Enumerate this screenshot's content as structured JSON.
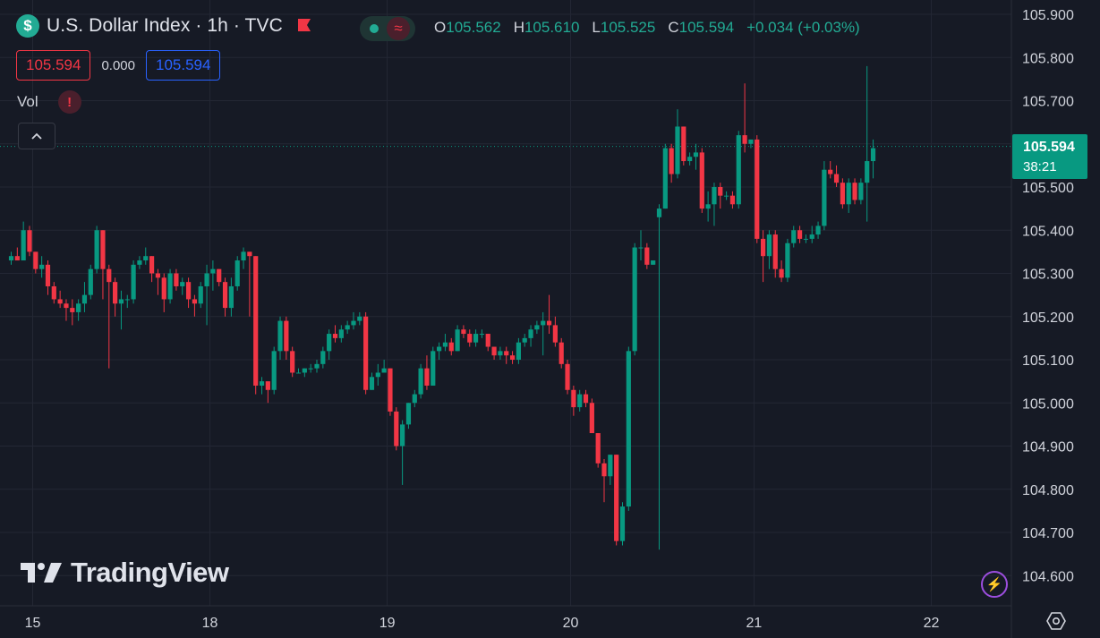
{
  "header": {
    "logo_symbol": "$",
    "title": "U.S. Dollar Index · 1h · TVC",
    "flag_icon": "flag-icon",
    "toggle_icon": "≈",
    "ohlc": [
      {
        "k": "O",
        "v": "105.562"
      },
      {
        "k": "H",
        "v": "105.610"
      },
      {
        "k": "L",
        "v": "105.525"
      },
      {
        "k": "C",
        "v": "105.594"
      }
    ],
    "change": "+0.034 (+0.03%)"
  },
  "trade": {
    "sell": "105.594",
    "spread": "0.000",
    "buy": "105.594"
  },
  "vol": {
    "label": "Vol",
    "warning": "!"
  },
  "collapse_icon": "chevron-up-icon",
  "current_price": {
    "price": "105.594",
    "countdown": "38:21"
  },
  "watermark": {
    "text": "TradingView"
  },
  "colors": {
    "up": "#089981",
    "down": "#f23645",
    "bg": "#161a25",
    "grid": "#232734",
    "accent": "#2962ff"
  },
  "chart_data": {
    "type": "candlestick",
    "title": "U.S. Dollar Index · 1h · TVC",
    "ylim": [
      104.58,
      105.93
    ],
    "y_ticks": [
      "105.900",
      "105.800",
      "105.700",
      "105.600",
      "105.500",
      "105.400",
      "105.300",
      "105.200",
      "105.100",
      "105.000",
      "104.900",
      "104.800",
      "104.700",
      "104.600"
    ],
    "x_ticks": [
      {
        "label": "15",
        "bar": 0
      },
      {
        "label": "18",
        "bar": 29
      },
      {
        "label": "19",
        "bar": 58
      },
      {
        "label": "20",
        "bar": 88
      },
      {
        "label": "21",
        "bar": 118
      },
      {
        "label": "22",
        "bar": 147
      }
    ],
    "last_price": 105.594,
    "candles": [
      [
        105.33,
        105.35,
        105.32,
        105.34
      ],
      [
        105.34,
        105.36,
        105.33,
        105.33
      ],
      [
        105.33,
        105.42,
        105.33,
        105.4
      ],
      [
        105.4,
        105.41,
        105.34,
        105.35
      ],
      [
        105.35,
        105.35,
        105.3,
        105.31
      ],
      [
        105.31,
        105.34,
        105.29,
        105.32
      ],
      [
        105.32,
        105.33,
        105.25,
        105.27
      ],
      [
        105.27,
        105.28,
        105.23,
        105.24
      ],
      [
        105.24,
        105.26,
        105.22,
        105.23
      ],
      [
        105.23,
        105.24,
        105.19,
        105.22
      ],
      [
        105.22,
        105.24,
        105.18,
        105.21
      ],
      [
        105.21,
        105.24,
        105.19,
        105.23
      ],
      [
        105.23,
        105.28,
        105.21,
        105.25
      ],
      [
        105.25,
        105.32,
        105.24,
        105.31
      ],
      [
        105.31,
        105.41,
        105.3,
        105.4
      ],
      [
        105.4,
        105.4,
        105.24,
        105.31
      ],
      [
        105.31,
        105.32,
        105.08,
        105.28
      ],
      [
        105.28,
        105.29,
        105.2,
        105.23
      ],
      [
        105.23,
        105.26,
        105.17,
        105.24
      ],
      [
        105.24,
        105.25,
        105.22,
        105.24
      ],
      [
        105.24,
        105.33,
        105.23,
        105.32
      ],
      [
        105.32,
        105.34,
        105.31,
        105.33
      ],
      [
        105.33,
        105.36,
        105.32,
        105.34
      ],
      [
        105.34,
        105.34,
        105.28,
        105.3
      ],
      [
        105.3,
        105.31,
        105.25,
        105.29
      ],
      [
        105.29,
        105.3,
        105.21,
        105.24
      ],
      [
        105.24,
        105.31,
        105.23,
        105.3
      ],
      [
        105.3,
        105.31,
        105.26,
        105.27
      ],
      [
        105.27,
        105.29,
        105.25,
        105.28
      ],
      [
        105.28,
        105.29,
        105.22,
        105.24
      ],
      [
        105.24,
        105.25,
        105.2,
        105.23
      ],
      [
        105.23,
        105.28,
        105.22,
        105.27
      ],
      [
        105.27,
        105.32,
        105.18,
        105.3
      ],
      [
        105.3,
        105.33,
        105.26,
        105.31
      ],
      [
        105.31,
        105.31,
        105.27,
        105.28
      ],
      [
        105.28,
        105.29,
        105.2,
        105.22
      ],
      [
        105.22,
        105.29,
        105.2,
        105.27
      ],
      [
        105.27,
        105.34,
        105.26,
        105.33
      ],
      [
        105.33,
        105.36,
        105.31,
        105.35
      ],
      [
        105.35,
        105.35,
        105.2,
        105.34
      ],
      [
        105.34,
        105.34,
        105.02,
        105.04
      ],
      [
        105.04,
        105.06,
        105.02,
        105.05
      ],
      [
        105.05,
        105.05,
        105.0,
        105.03
      ],
      [
        105.03,
        105.13,
        105.02,
        105.12
      ],
      [
        105.12,
        105.2,
        105.1,
        105.19
      ],
      [
        105.19,
        105.2,
        105.1,
        105.12
      ],
      [
        105.12,
        105.13,
        105.06,
        105.07
      ],
      [
        105.07,
        105.08,
        105.07,
        105.07
      ],
      [
        105.07,
        105.08,
        105.06,
        105.08
      ],
      [
        105.08,
        105.09,
        105.07,
        105.08
      ],
      [
        105.08,
        105.1,
        105.07,
        105.09
      ],
      [
        105.09,
        105.13,
        105.08,
        105.12
      ],
      [
        105.12,
        105.17,
        105.1,
        105.16
      ],
      [
        105.16,
        105.18,
        105.14,
        105.15
      ],
      [
        105.15,
        105.18,
        105.14,
        105.17
      ],
      [
        105.17,
        105.19,
        105.16,
        105.18
      ],
      [
        105.18,
        105.21,
        105.17,
        105.19
      ],
      [
        105.19,
        105.21,
        105.18,
        105.2
      ],
      [
        105.2,
        105.21,
        105.02,
        105.03
      ],
      [
        105.03,
        105.07,
        105.03,
        105.06
      ],
      [
        105.06,
        105.09,
        105.04,
        105.07
      ],
      [
        105.07,
        105.1,
        105.07,
        105.08
      ],
      [
        105.08,
        105.08,
        104.97,
        104.98
      ],
      [
        104.98,
        104.99,
        104.89,
        104.9
      ],
      [
        104.9,
        104.96,
        104.81,
        104.95
      ],
      [
        104.95,
        105.0,
        104.94,
        105.0
      ],
      [
        105.0,
        105.03,
        104.99,
        105.02
      ],
      [
        105.02,
        105.09,
        105.01,
        105.08
      ],
      [
        105.08,
        105.11,
        105.03,
        105.04
      ],
      [
        105.04,
        105.13,
        105.04,
        105.12
      ],
      [
        105.12,
        105.14,
        105.1,
        105.13
      ],
      [
        105.13,
        105.16,
        105.12,
        105.14
      ],
      [
        105.14,
        105.15,
        105.11,
        105.12
      ],
      [
        105.12,
        105.18,
        105.12,
        105.17
      ],
      [
        105.17,
        105.18,
        105.15,
        105.16
      ],
      [
        105.16,
        105.17,
        105.13,
        105.14
      ],
      [
        105.14,
        105.17,
        105.13,
        105.16
      ],
      [
        105.16,
        105.17,
        105.15,
        105.16
      ],
      [
        105.16,
        105.16,
        105.12,
        105.13
      ],
      [
        105.13,
        105.13,
        105.1,
        105.11
      ],
      [
        105.11,
        105.13,
        105.1,
        105.12
      ],
      [
        105.12,
        105.13,
        105.09,
        105.11
      ],
      [
        105.11,
        105.12,
        105.09,
        105.1
      ],
      [
        105.1,
        105.15,
        105.09,
        105.14
      ],
      [
        105.14,
        105.16,
        105.13,
        105.15
      ],
      [
        105.15,
        105.18,
        105.13,
        105.17
      ],
      [
        105.17,
        105.19,
        105.16,
        105.18
      ],
      [
        105.18,
        105.21,
        105.11,
        105.19
      ],
      [
        105.19,
        105.25,
        105.16,
        105.18
      ],
      [
        105.18,
        105.2,
        105.13,
        105.14
      ],
      [
        105.14,
        105.15,
        105.08,
        105.09
      ],
      [
        105.09,
        105.1,
        105.02,
        105.03
      ],
      [
        105.03,
        105.04,
        104.97,
        104.99
      ],
      [
        104.99,
        105.03,
        104.98,
        105.02
      ],
      [
        105.02,
        105.03,
        104.99,
        105.0
      ],
      [
        105.0,
        105.01,
        104.93,
        104.93
      ],
      [
        104.93,
        104.93,
        104.85,
        104.86
      ],
      [
        104.86,
        104.87,
        104.77,
        104.83
      ],
      [
        104.83,
        104.88,
        104.81,
        104.88
      ],
      [
        104.88,
        104.88,
        104.67,
        104.68
      ],
      [
        104.68,
        104.77,
        104.67,
        104.76
      ],
      [
        104.76,
        105.13,
        104.75,
        105.12
      ],
      [
        105.12,
        105.37,
        105.11,
        105.36
      ],
      [
        105.36,
        105.4,
        105.33,
        105.36
      ],
      [
        105.36,
        105.37,
        105.31,
        105.32
      ],
      [
        105.32,
        105.33,
        105.32,
        105.33
      ],
      [
        105.43,
        105.46,
        104.66,
        105.45
      ],
      [
        105.45,
        105.6,
        105.45,
        105.59
      ],
      [
        105.59,
        105.6,
        105.51,
        105.53
      ],
      [
        105.53,
        105.68,
        105.52,
        105.64
      ],
      [
        105.64,
        105.64,
        105.55,
        105.56
      ],
      [
        105.56,
        105.58,
        105.55,
        105.57
      ],
      [
        105.57,
        105.6,
        105.54,
        105.58
      ],
      [
        105.58,
        105.59,
        105.44,
        105.45
      ],
      [
        105.45,
        105.49,
        105.42,
        105.46
      ],
      [
        105.46,
        105.51,
        105.41,
        105.5
      ],
      [
        105.5,
        105.51,
        105.45,
        105.48
      ],
      [
        105.48,
        105.49,
        105.47,
        105.48
      ],
      [
        105.48,
        105.49,
        105.45,
        105.46
      ],
      [
        105.46,
        105.63,
        105.45,
        105.62
      ],
      [
        105.62,
        105.74,
        105.58,
        105.6
      ],
      [
        105.6,
        105.61,
        105.59,
        105.61
      ],
      [
        105.61,
        105.62,
        105.37,
        105.38
      ],
      [
        105.38,
        105.4,
        105.28,
        105.34
      ],
      [
        105.34,
        105.4,
        105.31,
        105.39
      ],
      [
        105.39,
        105.4,
        105.29,
        105.31
      ],
      [
        105.31,
        105.33,
        105.28,
        105.29
      ],
      [
        105.29,
        105.38,
        105.28,
        105.37
      ],
      [
        105.37,
        105.41,
        105.36,
        105.4
      ],
      [
        105.4,
        105.41,
        105.37,
        105.38
      ],
      [
        105.38,
        105.39,
        105.37,
        105.38
      ],
      [
        105.38,
        105.41,
        105.37,
        105.39
      ],
      [
        105.39,
        105.42,
        105.38,
        105.41
      ],
      [
        105.41,
        105.56,
        105.4,
        105.54
      ],
      [
        105.54,
        105.56,
        105.52,
        105.53
      ],
      [
        105.53,
        105.55,
        105.5,
        105.51
      ],
      [
        105.51,
        105.52,
        105.45,
        105.46
      ],
      [
        105.46,
        105.52,
        105.44,
        105.51
      ],
      [
        105.51,
        105.52,
        105.46,
        105.47
      ],
      [
        105.47,
        105.52,
        105.46,
        105.51
      ],
      [
        105.51,
        105.78,
        105.42,
        105.56
      ],
      [
        105.56,
        105.61,
        105.52,
        105.59
      ]
    ]
  }
}
